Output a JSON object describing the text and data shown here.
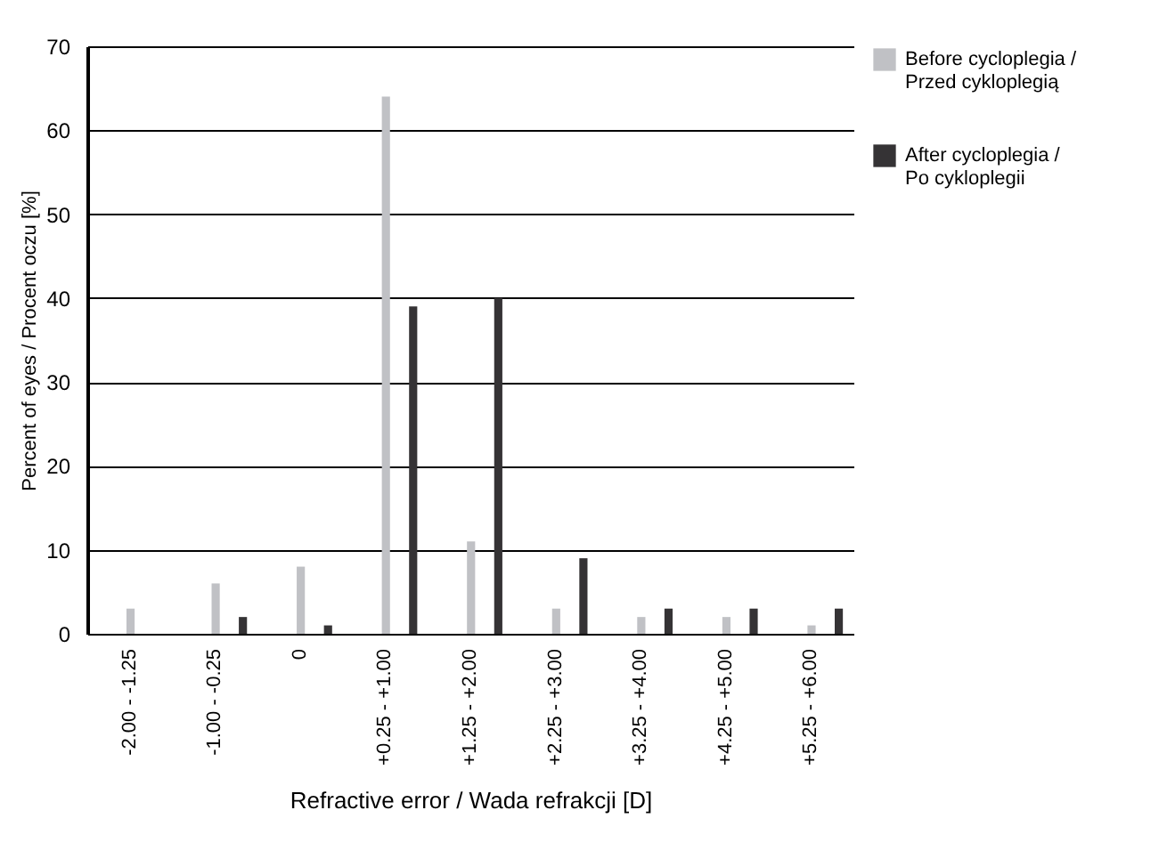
{
  "chart_data": {
    "type": "bar",
    "xlabel": "Refractive error / Wada refrakcji [D]",
    "ylabel": "Percent of eyes / Procent oczu [%]",
    "categories": [
      "-2.00 - -1.25",
      "-1.00 - -0.25",
      "0",
      "+0.25 - +1.00",
      "+1.25 - +2.00",
      "+2.25 - +3.00",
      "+3.25 - +4.00",
      "+4.25 - +5.00",
      "+5.25 - +6.00"
    ],
    "series": [
      {
        "name": "Before cycloplegia / Przed cykloplegią",
        "color": "#c0c1c5",
        "values": [
          3,
          6,
          8,
          64,
          11,
          3,
          2,
          2,
          1
        ]
      },
      {
        "name": "After cycloplegia / Po cykloplegii",
        "color": "#353335",
        "values": [
          0,
          2,
          1,
          39,
          40,
          9,
          3,
          3,
          3
        ]
      }
    ],
    "ylim": [
      0,
      70
    ],
    "yticks": [
      0,
      10,
      20,
      30,
      40,
      50,
      60,
      70
    ],
    "grid": "y",
    "legend": "right"
  }
}
